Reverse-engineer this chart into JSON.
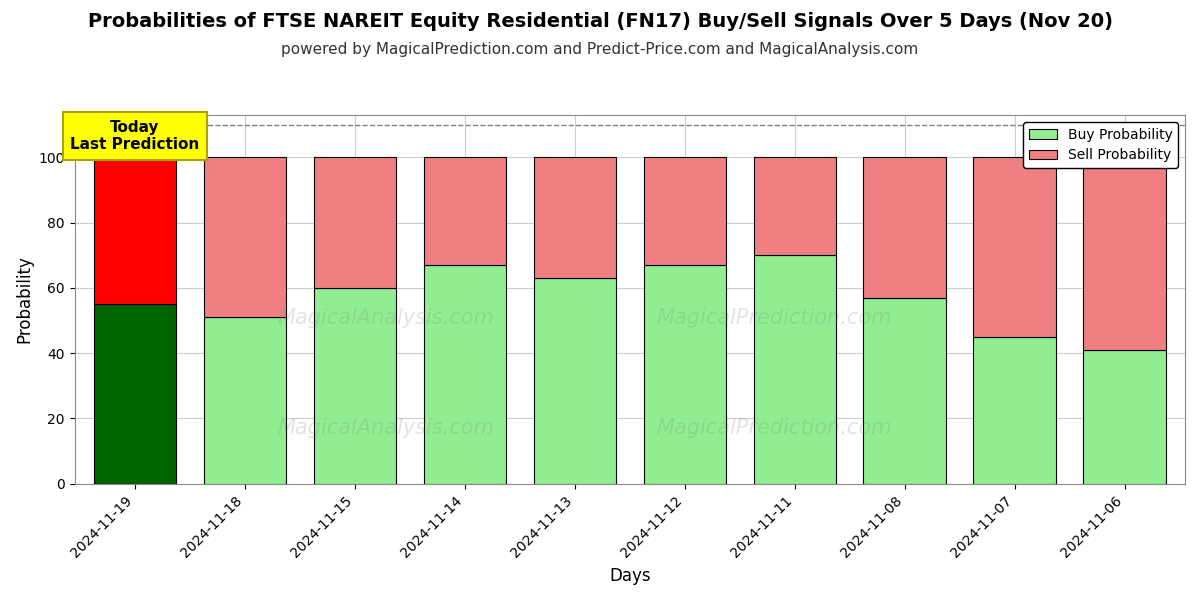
{
  "title": "Probabilities of FTSE NAREIT Equity Residential (FN17) Buy/Sell Signals Over 5 Days (Nov 20)",
  "subtitle": "powered by MagicalPrediction.com and Predict-Price.com and MagicalAnalysis.com",
  "xlabel": "Days",
  "ylabel": "Probability",
  "categories": [
    "2024-11-19",
    "2024-11-18",
    "2024-11-15",
    "2024-11-14",
    "2024-11-13",
    "2024-11-12",
    "2024-11-11",
    "2024-11-08",
    "2024-11-07",
    "2024-11-06"
  ],
  "buy_values": [
    55,
    51,
    60,
    67,
    63,
    67,
    70,
    57,
    45,
    41
  ],
  "sell_values": [
    45,
    49,
    40,
    33,
    37,
    33,
    30,
    43,
    55,
    59
  ],
  "today_index": 0,
  "buy_color_today": "#006400",
  "sell_color_today": "#ff0000",
  "buy_color_normal": "#90EE90",
  "sell_color_normal": "#F08080",
  "bar_edge_color": "#000000",
  "today_label_bg": "#ffff00",
  "today_label_text": "Today\nLast Prediction",
  "legend_buy": "Buy Probability",
  "legend_sell": "Sell Probability",
  "ylim": [
    0,
    113
  ],
  "yticks": [
    0,
    20,
    40,
    60,
    80,
    100
  ],
  "dashed_line_y": 110,
  "watermark_1": "MagicalAnalysis.com",
  "watermark_2": "MagicalPrediction.com",
  "background_color": "#ffffff",
  "grid_color": "#cccccc",
  "title_fontsize": 14,
  "subtitle_fontsize": 11,
  "axis_label_fontsize": 12,
  "tick_fontsize": 10,
  "bar_width": 0.75
}
